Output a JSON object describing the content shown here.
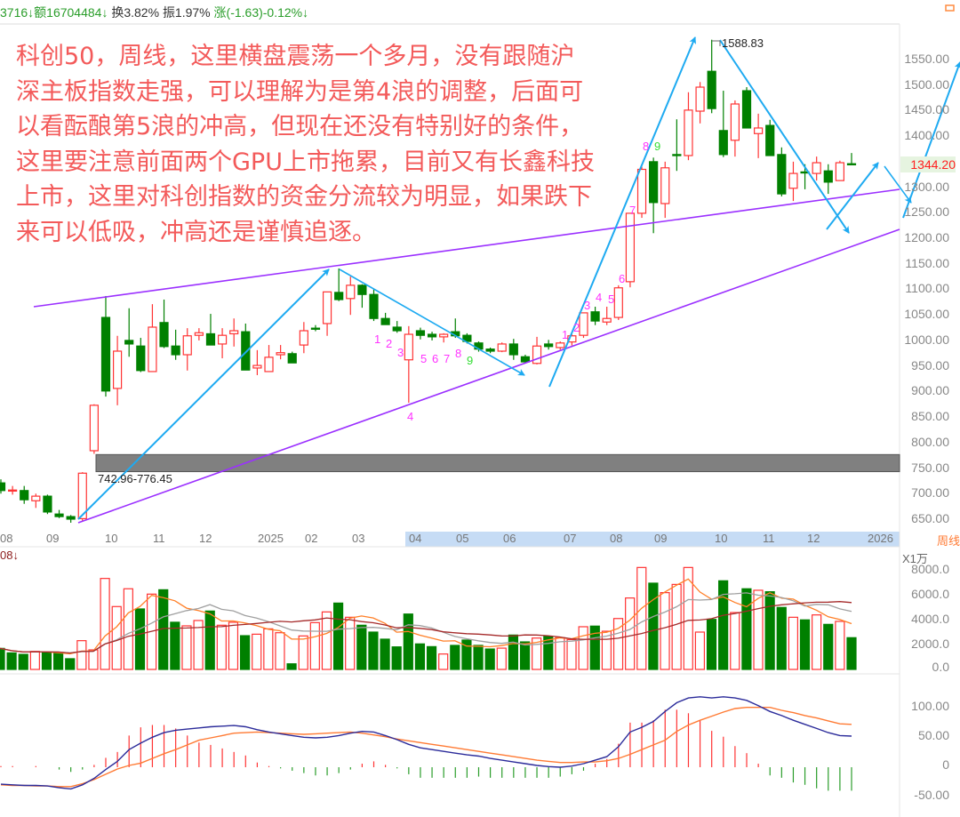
{
  "header": {
    "vol_tail": "3716↓",
    "amount": "额16704484↓",
    "turnover": "换3.82%",
    "amplitude": "振1.97%",
    "change": "涨(-1.63)-0.12%↓"
  },
  "annotation": [
    "科创50，周线，这里横盘震荡一个多月，没有跟随沪",
    "深主板指数走强，可以理解为是第4浪的调整，后面可",
    "以看酝酿第5浪的冲高，但现在还没有特别好的条件，",
    "这里要注意前面两个GPU上市拖累，目前又有长鑫科技",
    "上市，这里对科创指数的资金分流较为明显，如果跌下",
    "来可以低吸，冲高还是谨慎追逐。"
  ],
  "period_label": "周线",
  "volume_unit": "X1万",
  "volume_tag": "08↓",
  "current_price": "1344.20",
  "high_label": "1588.83",
  "gap_label": "742.96-776.45",
  "count_labels_a": [
    "1",
    "2",
    "3",
    "4",
    "5",
    "6",
    "7",
    "8",
    "9"
  ],
  "count_labels_b": [
    "1",
    "2",
    "3",
    "4",
    "5",
    "6",
    "7",
    "8",
    "9"
  ],
  "price_ticks": [
    "1550.00",
    "1500.00",
    "1450.00",
    "1400.00",
    "1300.00",
    "1250.00",
    "1200.00",
    "1150.00",
    "1100.00",
    "1050.00",
    "1000.00",
    "950.00",
    "900.00",
    "850.00",
    "800.00",
    "750.00",
    "700.00",
    "650.00"
  ],
  "volume_ticks": [
    "8000.0",
    "6000.0",
    "4000.0",
    "2000.0",
    "0.0"
  ],
  "macd_ticks": [
    "100.00",
    "50.00",
    "0",
    "-50.00"
  ],
  "month_ticks": [
    "08",
    "09",
    "10",
    "11",
    "12",
    "2025",
    "02",
    "03",
    "04",
    "05",
    "06",
    "07",
    "08",
    "09",
    "10",
    "11",
    "12",
    "2026"
  ],
  "colors": {
    "up": "#ff3333",
    "down": "#008000",
    "trendline": "#9b30ff",
    "arrow": "#1eaaf1",
    "annotation": "#f35a5a",
    "count": "#ff33ff",
    "gap_band": "#808080",
    "dif": "#2b2b9a",
    "dea": "#ff7a33",
    "vol_ma5": "#ff7f27",
    "vol_ma10": "#a0a0a0",
    "vol_ma20": "#a52a2a",
    "range_highlight": "#c6dcf5"
  },
  "chart_data": {
    "type": "candlestick",
    "period": "weekly",
    "price_range": [
      650,
      1550
    ],
    "candles_ohlc": [
      [
        721,
        728,
        700,
        706
      ],
      [
        706,
        715,
        698,
        707
      ],
      [
        706,
        715,
        680,
        688
      ],
      [
        686,
        700,
        672,
        695
      ],
      [
        695,
        698,
        660,
        664
      ],
      [
        660,
        668,
        652,
        655
      ],
      [
        655,
        658,
        643,
        650
      ],
      [
        651,
        742,
        645,
        740
      ],
      [
        784,
        875,
        778,
        873
      ],
      [
        1045,
        1087,
        890,
        901
      ],
      [
        906,
        1009,
        873,
        979
      ],
      [
        1000,
        1063,
        968,
        993
      ],
      [
        989,
        1005,
        938,
        941
      ],
      [
        939,
        1071,
        939,
        1026
      ],
      [
        1035,
        1080,
        985,
        988
      ],
      [
        989,
        1021,
        962,
        972
      ],
      [
        972,
        1024,
        941,
        1009
      ],
      [
        1010,
        1024,
        1000,
        1015
      ],
      [
        1013,
        1052,
        991,
        991
      ],
      [
        993,
        1024,
        965,
        1010
      ],
      [
        1013,
        1043,
        988,
        1019
      ],
      [
        1017,
        1033,
        942,
        942
      ],
      [
        946,
        981,
        932,
        951
      ],
      [
        939,
        991,
        939,
        967
      ],
      [
        972,
        991,
        963,
        976
      ],
      [
        974,
        978,
        956,
        956
      ],
      [
        991,
        1036,
        975,
        1019
      ],
      [
        1024,
        1030,
        1018,
        1023
      ],
      [
        1033,
        1095,
        1009,
        1095
      ],
      [
        1094,
        1141,
        1077,
        1080
      ],
      [
        1082,
        1125,
        1050,
        1108
      ],
      [
        1108,
        1110,
        1064,
        1090
      ],
      [
        1090,
        1101,
        1038,
        1043
      ],
      [
        1043,
        1054,
        1031,
        1031
      ],
      [
        1026,
        1038,
        1015,
        1019
      ],
      [
        962,
        1028,
        878,
        1012
      ],
      [
        1019,
        1025,
        1002,
        1010
      ],
      [
        1012,
        1017,
        1000,
        1007
      ],
      [
        1007,
        1014,
        996,
        1012
      ],
      [
        1017,
        1043,
        1005,
        1009
      ],
      [
        1010,
        1014,
        994,
        998
      ],
      [
        995,
        998,
        978,
        983
      ],
      [
        983,
        986,
        975,
        979
      ],
      [
        979,
        996,
        977,
        993
      ],
      [
        993,
        1003,
        962,
        972
      ],
      [
        968,
        972,
        955,
        958
      ],
      [
        955,
        1007,
        953,
        989
      ],
      [
        993,
        1001,
        982,
        988
      ],
      [
        986,
        998,
        982,
        995
      ],
      [
        997,
        1012,
        990,
        1009
      ],
      [
        1010,
        1054,
        1005,
        1054
      ],
      [
        1056,
        1066,
        1030,
        1038
      ],
      [
        1036,
        1066,
        1030,
        1043
      ],
      [
        1045,
        1108,
        1040,
        1103
      ],
      [
        1115,
        1249,
        1104,
        1249
      ],
      [
        1249,
        1340,
        1240,
        1335
      ],
      [
        1350,
        1358,
        1210,
        1270
      ],
      [
        1268,
        1350,
        1240,
        1338
      ],
      [
        1364,
        1433,
        1332,
        1363
      ],
      [
        1362,
        1486,
        1353,
        1451
      ],
      [
        1449,
        1506,
        1425,
        1496
      ],
      [
        1527,
        1588.83,
        1445,
        1454
      ],
      [
        1411,
        1489,
        1359,
        1364
      ],
      [
        1392,
        1470,
        1360,
        1463
      ],
      [
        1489,
        1496,
        1416,
        1416
      ],
      [
        1405,
        1444,
        1357,
        1416
      ],
      [
        1421,
        1432,
        1362,
        1362
      ],
      [
        1364,
        1378,
        1282,
        1287
      ],
      [
        1298,
        1350,
        1273,
        1327
      ],
      [
        1330,
        1345,
        1296,
        1329
      ],
      [
        1327,
        1360,
        1313,
        1348
      ],
      [
        1332,
        1345,
        1287,
        1310
      ],
      [
        1313,
        1352,
        1313,
        1348
      ],
      [
        1346,
        1367,
        1344,
        1344.2
      ]
    ],
    "gap_zone": [
      742.96,
      776.45
    ],
    "high": 1588.83,
    "volume_range": [
      0,
      8000
    ],
    "volume": [
      1690,
      1330,
      1210,
      1450,
      1360,
      1360,
      860,
      2310,
      1570,
      7310,
      5050,
      6480,
      4860,
      6050,
      6400,
      3790,
      3500,
      3930,
      4690,
      3550,
      3790,
      2710,
      2830,
      3260,
      2950,
      450,
      2690,
      3760,
      4620,
      5330,
      4190,
      3550,
      3000,
      2430,
      1810,
      4450,
      2050,
      1830,
      1240,
      1930,
      2360,
      1930,
      1640,
      1710,
      2760,
      2210,
      2520,
      2640,
      2550,
      2400,
      3430,
      3480,
      3070,
      4090,
      5740,
      8190,
      6930,
      6170,
      6830,
      8190,
      3000,
      4020,
      7120,
      4570,
      6480,
      6360,
      6240,
      4980,
      4190,
      3980,
      4380,
      3620,
      3860,
      2550
    ],
    "volume_up": [
      0,
      0,
      0,
      1,
      0,
      0,
      0,
      1,
      1,
      1,
      1,
      1,
      0,
      1,
      0,
      0,
      1,
      1,
      0,
      1,
      1,
      0,
      1,
      1,
      1,
      0,
      1,
      1,
      1,
      0,
      1,
      0,
      0,
      0,
      0,
      0,
      0,
      0,
      1,
      0,
      0,
      0,
      0,
      1,
      0,
      0,
      1,
      0,
      1,
      1,
      1,
      0,
      1,
      1,
      1,
      1,
      0,
      1,
      1,
      1,
      1,
      0,
      0,
      1,
      0,
      1,
      0,
      0,
      1,
      0,
      1,
      0,
      1,
      0
    ],
    "macd_range": [
      -50,
      100
    ],
    "macd_dif": [
      -29,
      -30,
      -31,
      -31,
      -32,
      -35,
      -37,
      -30,
      -19,
      -4,
      10,
      30,
      41,
      51,
      59,
      63,
      65,
      67,
      69,
      70,
      71,
      69,
      64,
      60,
      57,
      54,
      51,
      50,
      51,
      54,
      58,
      61,
      60,
      54,
      47,
      39,
      33,
      30,
      27,
      24,
      21,
      19,
      15,
      12,
      9,
      6,
      3,
      1,
      0,
      2,
      6,
      12,
      18,
      35,
      60,
      68,
      78,
      95,
      110,
      118,
      120,
      118,
      120,
      118,
      114,
      105,
      95,
      88,
      80,
      73,
      66,
      59,
      54,
      53
    ],
    "macd_dea": [
      -30,
      -31,
      -31,
      -32,
      -32,
      -33,
      -33,
      -28,
      -21,
      -12,
      -3,
      3,
      7,
      15,
      23,
      30,
      38,
      46,
      50,
      54,
      58,
      59,
      60,
      59,
      58,
      57,
      56,
      57,
      58,
      59,
      60,
      58,
      55,
      52,
      48,
      45,
      42,
      39,
      36,
      33,
      30,
      27,
      24,
      21,
      18,
      15,
      12,
      10,
      8,
      8,
      9,
      9,
      11,
      15,
      22,
      30,
      38,
      46,
      61,
      72,
      80,
      87,
      94,
      100,
      102,
      102,
      102,
      97,
      93,
      88,
      84,
      79,
      74,
      73
    ]
  }
}
